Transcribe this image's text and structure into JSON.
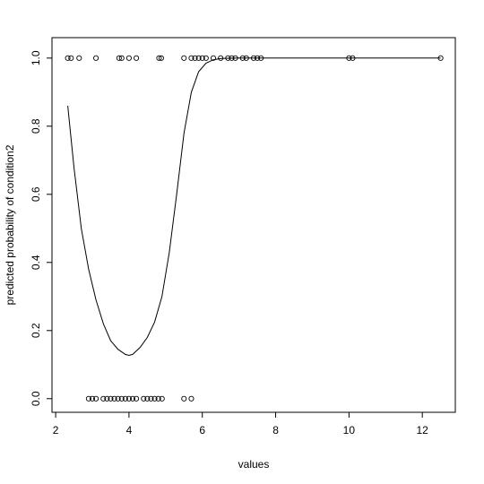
{
  "chart_data": {
    "type": "scatter",
    "xlabel": "values",
    "ylabel": "predicted probability of condition2",
    "xlim": [
      1.9,
      12.9
    ],
    "ylim": [
      -0.04,
      1.06
    ],
    "x_ticks": [
      2,
      4,
      6,
      8,
      10,
      12
    ],
    "y_ticks": [
      0.0,
      0.2,
      0.4,
      0.6,
      0.8,
      1.0
    ],
    "x_tick_labels": [
      "2",
      "4",
      "6",
      "8",
      "10",
      "12"
    ],
    "y_tick_labels": [
      "0.0",
      "0.2",
      "0.4",
      "0.6",
      "0.8",
      "1.0"
    ],
    "grid": false,
    "series": [
      {
        "kind": "points",
        "marker": "open-circle",
        "x": [
          2.33,
          2.42,
          2.64,
          3.1,
          3.73,
          3.8,
          4.0,
          4.2,
          4.82,
          4.88,
          5.5,
          5.7,
          5.8,
          5.9,
          6.0,
          6.1,
          6.3,
          6.5,
          6.7,
          6.8,
          6.9,
          7.1,
          7.2,
          7.4,
          7.5,
          7.6,
          10.0,
          10.1,
          12.5,
          2.9,
          3.0,
          3.1,
          3.3,
          3.4,
          3.5,
          3.6,
          3.7,
          3.8,
          3.9,
          4.0,
          4.1,
          4.2,
          4.4,
          4.5,
          4.6,
          4.7,
          4.8,
          4.9,
          5.5,
          5.7
        ],
        "y": [
          1,
          1,
          1,
          1,
          1,
          1,
          1,
          1,
          1,
          1,
          1,
          1,
          1,
          1,
          1,
          1,
          1,
          1,
          1,
          1,
          1,
          1,
          1,
          1,
          1,
          1,
          1,
          1,
          1,
          0,
          0,
          0,
          0,
          0,
          0,
          0,
          0,
          0,
          0,
          0,
          0,
          0,
          0,
          0,
          0,
          0,
          0,
          0,
          0,
          0
        ]
      },
      {
        "kind": "line",
        "x": [
          2.33,
          2.5,
          2.7,
          2.9,
          3.1,
          3.3,
          3.5,
          3.7,
          3.9,
          4.0,
          4.1,
          4.3,
          4.5,
          4.7,
          4.9,
          5.1,
          5.3,
          5.5,
          5.7,
          5.9,
          6.1,
          6.3,
          6.5,
          7.0,
          8.0,
          9.0,
          10.0,
          11.0,
          12.5
        ],
        "y": [
          0.86,
          0.68,
          0.5,
          0.38,
          0.29,
          0.22,
          0.17,
          0.145,
          0.13,
          0.127,
          0.13,
          0.15,
          0.18,
          0.225,
          0.3,
          0.43,
          0.6,
          0.78,
          0.9,
          0.96,
          0.985,
          0.995,
          0.999,
          1.0,
          1.0,
          1.0,
          1.0,
          1.0,
          1.0
        ]
      }
    ]
  }
}
